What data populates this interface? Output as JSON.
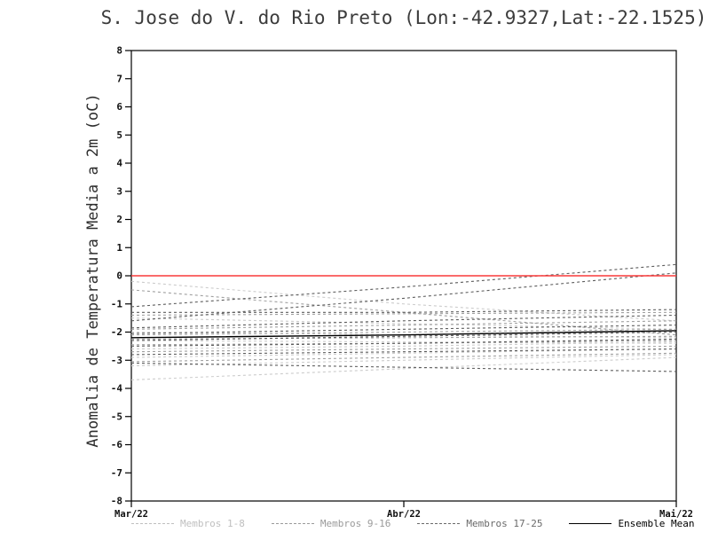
{
  "chart_data": {
    "type": "line",
    "title": "S. Jose do V. do Rio Preto (Lon:-42.9327,Lat:-22.1525)",
    "xlabel": "",
    "ylabel": "Anomalia de Temperatura Media a 2m (oC)",
    "x_tick_labels": [
      "Mar/22",
      "Abr/22",
      "Mai/22"
    ],
    "ylim": [
      -8,
      8
    ],
    "y_tick_step": 1,
    "grid": false,
    "frame_color": "#000000",
    "zero_line": {
      "value": 0,
      "color": "#f83a3a"
    },
    "legend_position": "bottom",
    "groups": [
      {
        "name": "Membros 1-8",
        "color": "#cccccc",
        "dash": "3,3",
        "members": [
          [
            -0.2,
            -1.0,
            -1.6
          ],
          [
            -1.5,
            -1.7,
            -1.9
          ],
          [
            -2.0,
            -2.1,
            -2.2
          ],
          [
            -2.3,
            -2.35,
            -2.4
          ],
          [
            -2.6,
            -2.5,
            -2.35
          ],
          [
            -2.9,
            -2.75,
            -2.6
          ],
          [
            -3.2,
            -3.0,
            -2.8
          ],
          [
            -3.7,
            -3.3,
            -2.9
          ]
        ]
      },
      {
        "name": "Membros 9-16",
        "color": "#a0a0a0",
        "dash": "3,3",
        "members": [
          [
            -0.5,
            -1.3,
            -2.1
          ],
          [
            -1.4,
            -1.35,
            -1.3
          ],
          [
            -1.9,
            -1.75,
            -1.6
          ],
          [
            -2.1,
            -2.0,
            -1.9
          ],
          [
            -2.25,
            -2.2,
            -2.15
          ],
          [
            -2.45,
            -2.4,
            -2.3
          ],
          [
            -2.7,
            -2.6,
            -2.5
          ],
          [
            -3.05,
            -2.9,
            -2.75
          ]
        ]
      },
      {
        "name": "Membros 17-25",
        "color": "#5d5d5d",
        "dash": "3,3",
        "members": [
          [
            -1.1,
            -0.4,
            0.4
          ],
          [
            -1.6,
            -0.8,
            0.1
          ],
          [
            -1.3,
            -1.3,
            -1.2
          ],
          [
            -1.85,
            -1.6,
            -1.4
          ],
          [
            -2.05,
            -1.9,
            -1.75
          ],
          [
            -2.3,
            -2.15,
            -2.0
          ],
          [
            -2.5,
            -2.4,
            -2.25
          ],
          [
            -2.8,
            -2.7,
            -2.6
          ],
          [
            -3.1,
            -3.25,
            -3.4
          ]
        ]
      }
    ],
    "ensemble_mean": {
      "name": "Ensemble Mean",
      "color": "#000000",
      "values": [
        -2.2,
        -2.1,
        -1.95
      ]
    }
  },
  "legend": {
    "items": [
      {
        "label": "Membros 1-8",
        "color": "#bfbfbf",
        "style": "dashed"
      },
      {
        "label": "Membros 9-16",
        "color": "#9a9a9a",
        "style": "dashed"
      },
      {
        "label": "Membros 17-25",
        "color": "#6a6a6a",
        "style": "dashed"
      },
      {
        "label": "Ensemble Mean",
        "color": "#000000",
        "style": "solid"
      }
    ]
  }
}
